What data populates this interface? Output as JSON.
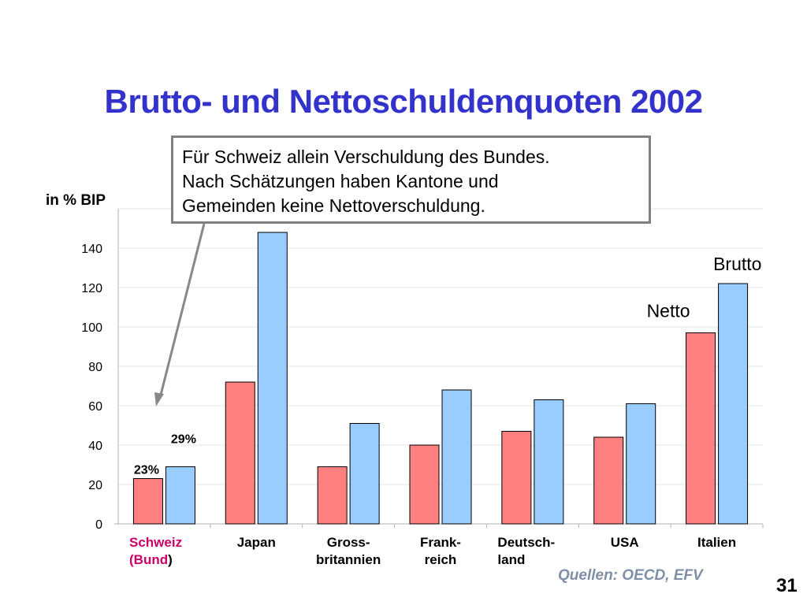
{
  "slide": {
    "title": "Brutto- und Nettoschuldenquoten 2002",
    "y_axis_label": "in % BIP",
    "note_lines": [
      "Für Schweiz allein Verschuldung des Bundes.",
      "Nach Schätzungen haben Kantone und",
      "Gemeinden keine Nettoverschuldung."
    ],
    "source": "Quellen: OECD, EFV",
    "page_number": "31"
  },
  "chart_data": {
    "type": "bar",
    "categories": [
      [
        "Schweiz",
        "(Bund)"
      ],
      [
        "Japan"
      ],
      [
        "Gross-",
        "britannien"
      ],
      [
        "Frank-",
        "reich"
      ],
      [
        "Deutsch-",
        "land"
      ],
      [
        "USA"
      ],
      [
        "Italien"
      ]
    ],
    "category_label_align": [
      "left",
      "center",
      "center",
      "center",
      "left",
      "center",
      "center"
    ],
    "highlight_category_color": "#cc0066",
    "series": [
      {
        "name": "Netto",
        "color": "#ff8080",
        "values": [
          23,
          72,
          29,
          40,
          47,
          44,
          97
        ]
      },
      {
        "name": "Brutto",
        "color": "#99ccff",
        "values": [
          29,
          148,
          51,
          68,
          63,
          61,
          122
        ]
      }
    ],
    "data_labels": [
      "23%",
      "29%"
    ],
    "yticks": [
      0,
      20,
      40,
      60,
      80,
      100,
      120,
      140
    ],
    "ylim": [
      0,
      160
    ],
    "grid": true,
    "legend": "labels next to Italien bars",
    "arrow_color": "#888888"
  }
}
